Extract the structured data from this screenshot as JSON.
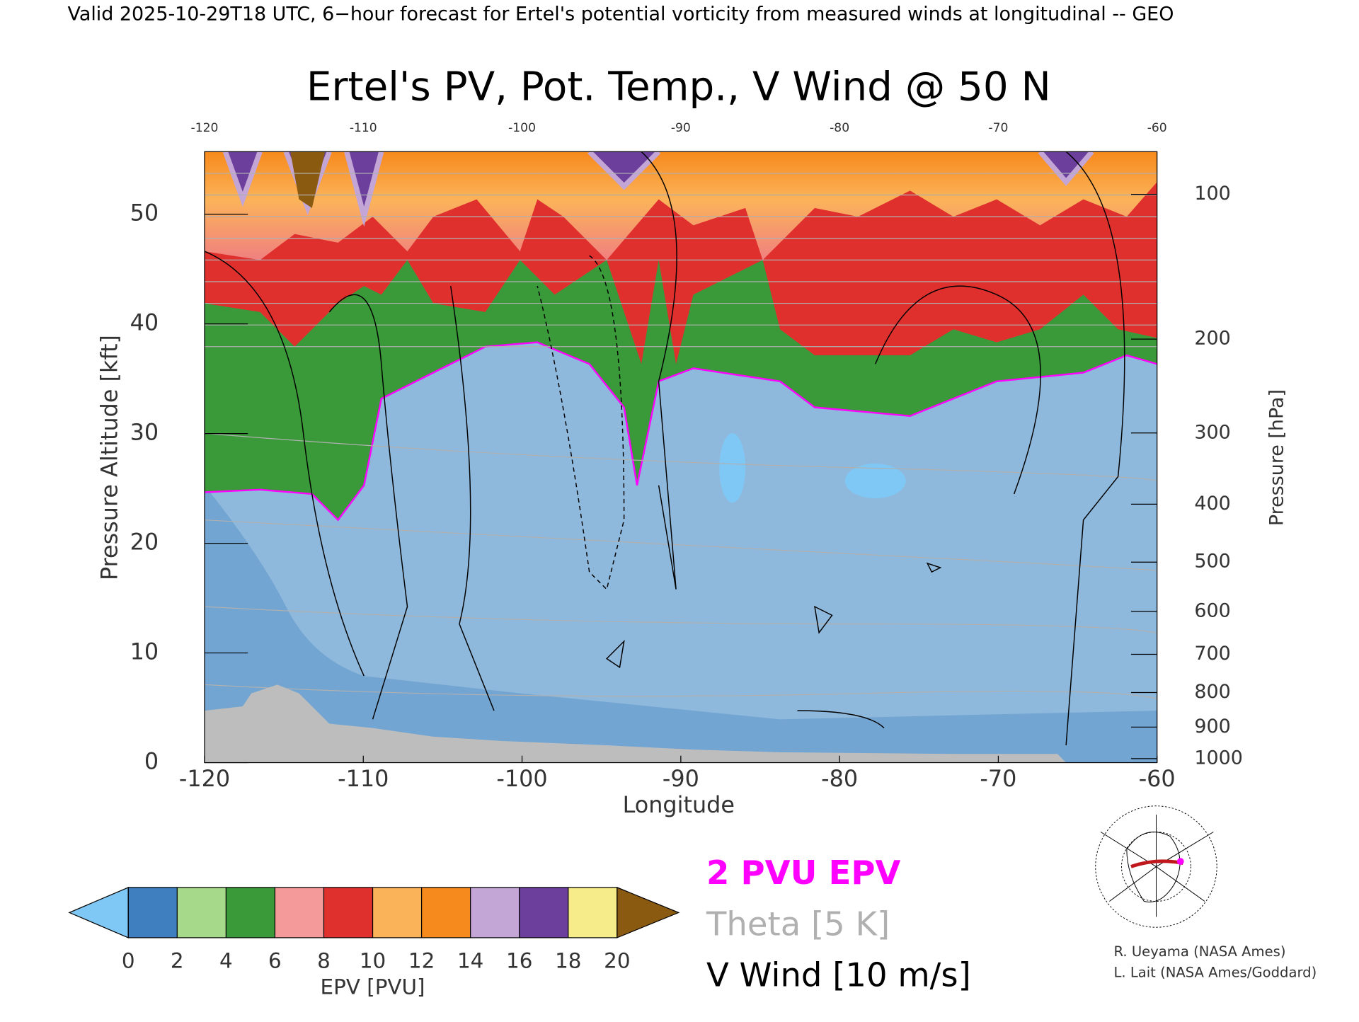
{
  "header": "Valid 2025-10-29T18 UTC, 6−hour forecast for Ertel's potential vorticity from measured winds at longitudinal -- GEO",
  "chart_data": {
    "type": "contour",
    "title": "Ertel's PV, Pot. Temp., V Wind @ 50 N",
    "x_label": "Longitude",
    "y_label": "Pressure Altitude [kft]",
    "y2_label": "Pressure [hPa]",
    "xlim": [
      -120,
      -60
    ],
    "xticks": [
      -120,
      -110,
      -100,
      -90,
      -80,
      -70,
      -60
    ],
    "ylim": [
      0,
      55.7
    ],
    "yticks": [
      0,
      10,
      20,
      30,
      40,
      50
    ],
    "y2scale": "standard-atmosphere",
    "y2ticks": [
      100,
      200,
      300,
      400,
      500,
      600,
      700,
      800,
      900,
      1000
    ],
    "colorbar": {
      "label": "EPV [PVU]",
      "ticks": [
        0,
        2,
        4,
        6,
        8,
        10,
        12,
        14,
        16,
        18,
        20
      ],
      "colors": [
        "#3f7fbf",
        "#a6d98a",
        "#3a9a3a",
        "#f59a9a",
        "#e0302e",
        "#fbb35a",
        "#f78a1c",
        "#c3a6d6",
        "#6c3f9c",
        "#f6ec8a"
      ],
      "under_color": "#7fc8f5",
      "over_color": "#8a5a10"
    },
    "legend": [
      {
        "name": "2 PVU EPV",
        "color": "#ff00ff"
      },
      {
        "name": "Theta [5 K]",
        "color": "#b0b0b0"
      },
      {
        "name": "V Wind [10 m/s]",
        "color": "#000000"
      }
    ]
  },
  "credits": [
    "R. Ueyama (NASA Ames)",
    "L. Lait (NASA Ames/Goddard)"
  ]
}
